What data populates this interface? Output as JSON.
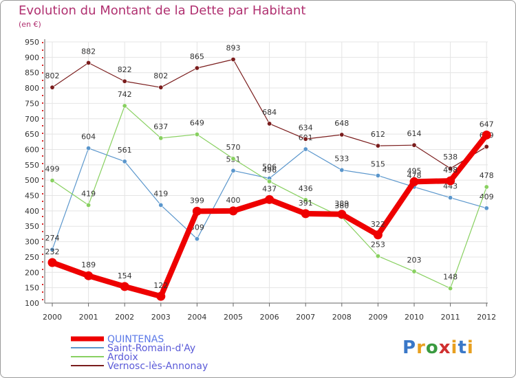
{
  "title": "Evolution du Montant de la Dette par Habitant",
  "subtitle": "(en €)",
  "logo": [
    "P",
    "r",
    "o",
    "x",
    "i",
    "t",
    "i"
  ],
  "logo_colors": [
    "#3a78c8",
    "#e8a020",
    "#3a9a40",
    "#d03030",
    "#e8a020",
    "#3a78c8",
    "#e8a020"
  ],
  "chart_data": {
    "type": "line",
    "title": "Evolution du Montant de la Dette par Habitant",
    "subtitle": "(en €)",
    "xlabel": "",
    "ylabel": "",
    "categories": [
      "2000",
      "2001",
      "2002",
      "2003",
      "2004",
      "2005",
      "2006",
      "2007",
      "2008",
      "2009",
      "2010",
      "2011",
      "2012"
    ],
    "ylim": [
      100,
      950
    ],
    "yticks": [
      100,
      150,
      200,
      250,
      300,
      350,
      400,
      450,
      500,
      550,
      600,
      650,
      700,
      750,
      800,
      850,
      900,
      950
    ],
    "grid": true,
    "legend_position": "bottom-left",
    "series": [
      {
        "name": "QUINTENAS",
        "color": "#ee0000",
        "emphasis": true,
        "values": [
          232,
          189,
          154,
          122,
          399,
          400,
          437,
          391,
          389,
          322,
          495,
          498,
          647
        ]
      },
      {
        "name": "Saint-Romain-d'Ay",
        "color": "#5a96cc",
        "emphasis": false,
        "values": [
          274,
          604,
          561,
          419,
          309,
          531,
          506,
          601,
          533,
          515,
          478,
          443,
          409
        ]
      },
      {
        "name": "Ardoix",
        "color": "#88d060",
        "emphasis": false,
        "values": [
          499,
          419,
          742,
          637,
          649,
          570,
          496,
          436,
          380,
          253,
          203,
          148,
          478
        ]
      },
      {
        "name": "Vernosc-lès-Annonay",
        "color": "#7a1c1c",
        "emphasis": false,
        "values": [
          802,
          882,
          822,
          802,
          865,
          893,
          684,
          634,
          648,
          612,
          614,
          538,
          609
        ]
      }
    ]
  }
}
